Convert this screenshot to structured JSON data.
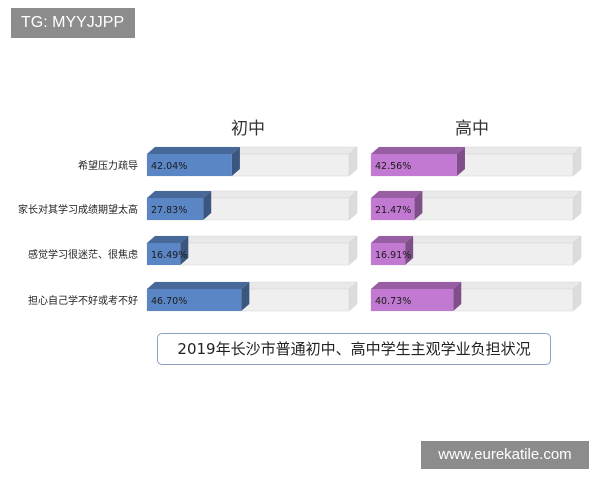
{
  "watermark_top": "TG: MYYJJPP",
  "watermark_bottom": "www.eurekatile.com",
  "caption": "2019年长沙市普通初中、高中学生主观学业负担状况",
  "chart_data": {
    "type": "bar",
    "orientation": "horizontal",
    "categories": [
      "希望压力疏导",
      "家长对其学习成绩期望太高",
      "感觉学习很迷茫、很焦虑",
      "担心自己学不好或考不好"
    ],
    "panels": [
      {
        "name": "初中",
        "color": "#5b86c5",
        "values": [
          42.04,
          27.83,
          16.49,
          46.7
        ],
        "labels": [
          "42.04%",
          "27.83%",
          "16.49%",
          "46.70%"
        ]
      },
      {
        "name": "高中",
        "color": "#c279d2",
        "values": [
          42.56,
          21.47,
          16.91,
          40.73
        ],
        "labels": [
          "42.56%",
          "21.47%",
          "16.91%",
          "40.73%"
        ]
      }
    ],
    "xlim": [
      0,
      100
    ],
    "grid": false
  }
}
